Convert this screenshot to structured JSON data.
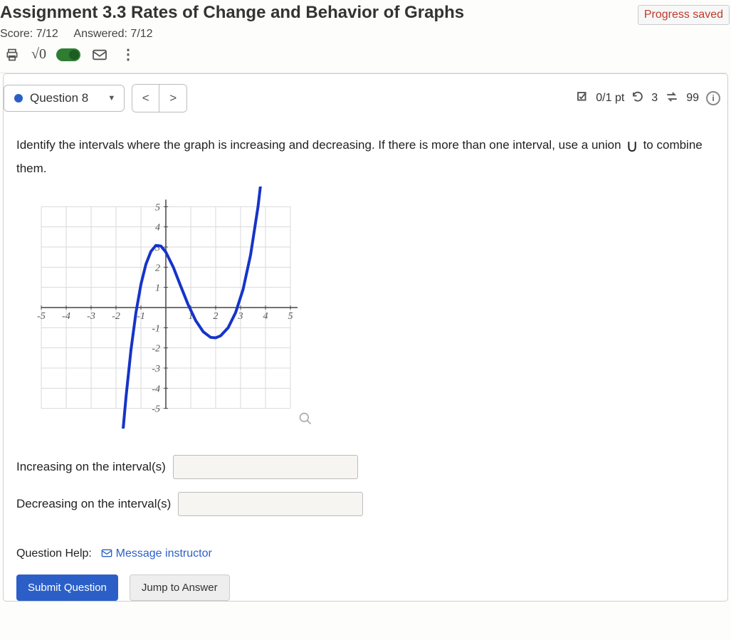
{
  "header": {
    "title": "Assignment 3.3 Rates of Change and Behavior of Graphs",
    "progress_saved": "Progress saved",
    "score_label": "Score: 7/12",
    "answered_label": "Answered: 7/12"
  },
  "question_bar": {
    "label": "Question 8",
    "points": "0/1 pt",
    "attempts": "3",
    "tries": "99"
  },
  "prompt": {
    "text1": "Identify the intervals where the graph is increasing and decreasing. If there is more than one interval, use a union ",
    "text2": " to combine them."
  },
  "graph": {
    "xlim": [
      -6,
      6
    ],
    "ylim": [
      -6,
      6
    ],
    "xticks": [
      -5,
      -4,
      -3,
      -2,
      -1,
      1,
      2,
      3,
      4,
      5
    ],
    "yticks": [
      -5,
      -4,
      -3,
      -2,
      -1,
      1,
      2,
      3,
      4,
      5
    ],
    "grid_color": "#d9d9d9",
    "axis_color": "#444444",
    "curve_color": "#1634c9",
    "curve_width": 4,
    "background": "#ffffff",
    "curve_points": [
      [
        -1.75,
        -6.5
      ],
      [
        -1.6,
        -4.45
      ],
      [
        -1.4,
        -2.1
      ],
      [
        -1.2,
        -0.25
      ],
      [
        -1.0,
        1.15
      ],
      [
        -0.8,
        2.15
      ],
      [
        -0.6,
        2.78
      ],
      [
        -0.4,
        3.08
      ],
      [
        -0.2,
        3.05
      ],
      [
        0.0,
        2.75
      ],
      [
        0.3,
        2.0
      ],
      [
        0.6,
        1.05
      ],
      [
        0.9,
        0.13
      ],
      [
        1.2,
        -0.65
      ],
      [
        1.5,
        -1.2
      ],
      [
        1.8,
        -1.48
      ],
      [
        2.0,
        -1.5
      ],
      [
        2.2,
        -1.4
      ],
      [
        2.5,
        -1.0
      ],
      [
        2.8,
        -0.25
      ],
      [
        3.1,
        0.9
      ],
      [
        3.4,
        2.6
      ],
      [
        3.7,
        5.0
      ],
      [
        3.9,
        7.1
      ]
    ]
  },
  "inputs": {
    "increasing_label": "Increasing on the interval(s)",
    "decreasing_label": "Decreasing on the interval(s)",
    "increasing_value": "",
    "decreasing_value": ""
  },
  "help": {
    "label": "Question Help:",
    "link": "Message instructor"
  },
  "actions": {
    "submit": "Submit Question",
    "jump": "Jump to Answer"
  }
}
